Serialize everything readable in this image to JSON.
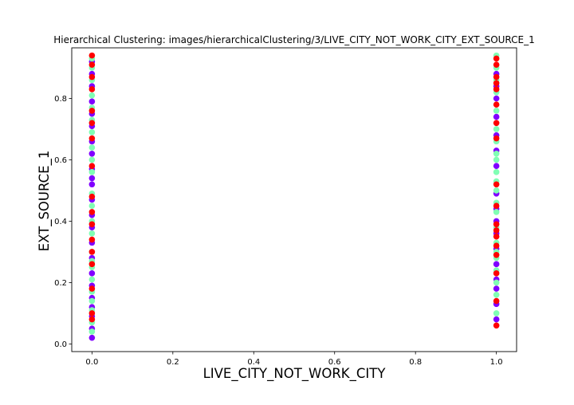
{
  "chart_data": {
    "type": "scatter",
    "title": "Hierarchical Clustering: images/hierarchicalClustering/3/LIVE_CITY_NOT_WORK_CITY_EXT_SOURCE_1",
    "xlabel": "LIVE_CITY_NOT_WORK_CITY",
    "ylabel": "EXT_SOURCE_1",
    "xlim": [
      -0.05,
      1.05
    ],
    "ylim": [
      -0.025,
      0.965
    ],
    "xticks": [
      "0.0",
      "0.2",
      "0.4",
      "0.6",
      "0.8",
      "1.0"
    ],
    "xtick_values": [
      0,
      0.2,
      0.4,
      0.6,
      0.8,
      1.0
    ],
    "yticks": [
      "0.0",
      "0.2",
      "0.4",
      "0.6",
      "0.8"
    ],
    "ytick_values": [
      0,
      0.2,
      0.4,
      0.6,
      0.8
    ],
    "grid": false,
    "cluster_colors": [
      "#8000ff",
      "#80ffb4",
      "#ff0000"
    ],
    "series": [
      {
        "cluster": 0,
        "color": "#8000ff",
        "points": [
          [
            0,
            0.02
          ],
          [
            0,
            0.05
          ],
          [
            0,
            0.09
          ],
          [
            0,
            0.12
          ],
          [
            0,
            0.15
          ],
          [
            0,
            0.19
          ],
          [
            0,
            0.23
          ],
          [
            0,
            0.28
          ],
          [
            0,
            0.33
          ],
          [
            0,
            0.38
          ],
          [
            0,
            0.42
          ],
          [
            0,
            0.47
          ],
          [
            0,
            0.52
          ],
          [
            0,
            0.54
          ],
          [
            0,
            0.57
          ],
          [
            0,
            0.62
          ],
          [
            0,
            0.66
          ],
          [
            0,
            0.71
          ],
          [
            0,
            0.75
          ],
          [
            0,
            0.79
          ],
          [
            0,
            0.84
          ],
          [
            0,
            0.88
          ],
          [
            0,
            0.92
          ],
          [
            1,
            0.08
          ],
          [
            1,
            0.13
          ],
          [
            1,
            0.18
          ],
          [
            1,
            0.21
          ],
          [
            1,
            0.26
          ],
          [
            1,
            0.31
          ],
          [
            1,
            0.36
          ],
          [
            1,
            0.4
          ],
          [
            1,
            0.44
          ],
          [
            1,
            0.49
          ],
          [
            1,
            0.58
          ],
          [
            1,
            0.63
          ],
          [
            1,
            0.68
          ],
          [
            1,
            0.74
          ],
          [
            1,
            0.8
          ],
          [
            1,
            0.84
          ],
          [
            1,
            0.88
          ]
        ]
      },
      {
        "cluster": 1,
        "color": "#80ffb4",
        "points": [
          [
            0,
            0.04
          ],
          [
            0,
            0.07
          ],
          [
            0,
            0.11
          ],
          [
            0,
            0.14
          ],
          [
            0,
            0.17
          ],
          [
            0,
            0.21
          ],
          [
            0,
            0.25
          ],
          [
            0,
            0.27
          ],
          [
            0,
            0.3
          ],
          [
            0,
            0.36
          ],
          [
            0,
            0.4
          ],
          [
            0,
            0.45
          ],
          [
            0,
            0.49
          ],
          [
            0,
            0.56
          ],
          [
            0,
            0.6
          ],
          [
            0,
            0.64
          ],
          [
            0,
            0.69
          ],
          [
            0,
            0.73
          ],
          [
            0,
            0.77
          ],
          [
            0,
            0.81
          ],
          [
            0,
            0.86
          ],
          [
            0,
            0.9
          ],
          [
            0,
            0.93
          ],
          [
            1,
            0.1
          ],
          [
            1,
            0.16
          ],
          [
            1,
            0.2
          ],
          [
            1,
            0.24
          ],
          [
            1,
            0.28
          ],
          [
            1,
            0.3
          ],
          [
            1,
            0.33
          ],
          [
            1,
            0.38
          ],
          [
            1,
            0.43
          ],
          [
            1,
            0.46
          ],
          [
            1,
            0.5
          ],
          [
            1,
            0.53
          ],
          [
            1,
            0.56
          ],
          [
            1,
            0.6
          ],
          [
            1,
            0.62
          ],
          [
            1,
            0.66
          ],
          [
            1,
            0.7
          ],
          [
            1,
            0.76
          ],
          [
            1,
            0.82
          ],
          [
            1,
            0.86
          ],
          [
            1,
            0.9
          ],
          [
            1,
            0.94
          ]
        ]
      },
      {
        "cluster": 2,
        "color": "#ff0000",
        "points": [
          [
            0,
            0.08
          ],
          [
            0,
            0.1
          ],
          [
            0,
            0.18
          ],
          [
            0,
            0.26
          ],
          [
            0,
            0.3
          ],
          [
            0,
            0.34
          ],
          [
            0,
            0.39
          ],
          [
            0,
            0.43
          ],
          [
            0,
            0.48
          ],
          [
            0,
            0.58
          ],
          [
            0,
            0.67
          ],
          [
            0,
            0.72
          ],
          [
            0,
            0.76
          ],
          [
            0,
            0.83
          ],
          [
            0,
            0.87
          ],
          [
            0,
            0.91
          ],
          [
            0,
            0.94
          ],
          [
            1,
            0.06
          ],
          [
            1,
            0.14
          ],
          [
            1,
            0.23
          ],
          [
            1,
            0.29
          ],
          [
            1,
            0.32
          ],
          [
            1,
            0.35
          ],
          [
            1,
            0.37
          ],
          [
            1,
            0.39
          ],
          [
            1,
            0.45
          ],
          [
            1,
            0.52
          ],
          [
            1,
            0.67
          ],
          [
            1,
            0.72
          ],
          [
            1,
            0.78
          ],
          [
            1,
            0.83
          ],
          [
            1,
            0.85
          ],
          [
            1,
            0.87
          ],
          [
            1,
            0.91
          ],
          [
            1,
            0.93
          ]
        ]
      }
    ]
  }
}
